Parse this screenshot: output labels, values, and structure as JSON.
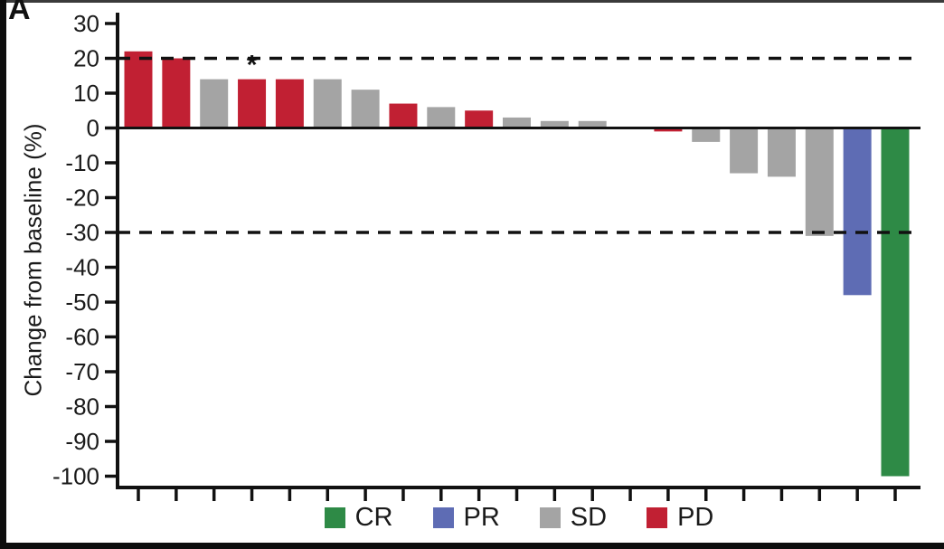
{
  "panel_label": "A",
  "chart_data": {
    "type": "bar",
    "subtype": "waterfall",
    "title": "",
    "xlabel": "",
    "ylabel": "Change from baseline (%)",
    "ylim": [
      -100,
      30
    ],
    "yticks": [
      30,
      20,
      10,
      0,
      -10,
      -20,
      -30,
      -40,
      -50,
      -60,
      -70,
      -80,
      -90,
      -100
    ],
    "grid": false,
    "reference_lines": [
      {
        "y": 20,
        "style": "dashed"
      },
      {
        "y": -30,
        "style": "dashed"
      }
    ],
    "bars": [
      {
        "value": 22,
        "response": "PD"
      },
      {
        "value": 20,
        "response": "PD"
      },
      {
        "value": 14,
        "response": "SD"
      },
      {
        "value": 14,
        "response": "PD",
        "annotation": "*"
      },
      {
        "value": 14,
        "response": "PD"
      },
      {
        "value": 14,
        "response": "SD"
      },
      {
        "value": 11,
        "response": "SD"
      },
      {
        "value": 7,
        "response": "PD"
      },
      {
        "value": 6,
        "response": "SD"
      },
      {
        "value": 5,
        "response": "PD"
      },
      {
        "value": 3,
        "response": "SD"
      },
      {
        "value": 2,
        "response": "SD"
      },
      {
        "value": 2,
        "response": "SD"
      },
      {
        "value": 0,
        "response": "SD"
      },
      {
        "value": -1,
        "response": "PD"
      },
      {
        "value": -4,
        "response": "SD"
      },
      {
        "value": -13,
        "response": "SD"
      },
      {
        "value": -14,
        "response": "SD"
      },
      {
        "value": -31,
        "response": "SD"
      },
      {
        "value": -48,
        "response": "PR"
      },
      {
        "value": -100,
        "response": "CR"
      }
    ],
    "legend": [
      {
        "label": "CR",
        "color": "#2e8a46"
      },
      {
        "label": "PR",
        "color": "#5e6cb4"
      },
      {
        "label": "SD",
        "color": "#a4a4a4"
      },
      {
        "label": "PD",
        "color": "#c12033"
      }
    ],
    "colors": {
      "CR": "#2e8a46",
      "PR": "#5e6cb4",
      "SD": "#a4a4a4",
      "PD": "#c12033"
    },
    "axis_color": "#111111",
    "legend_position": "bottom"
  }
}
